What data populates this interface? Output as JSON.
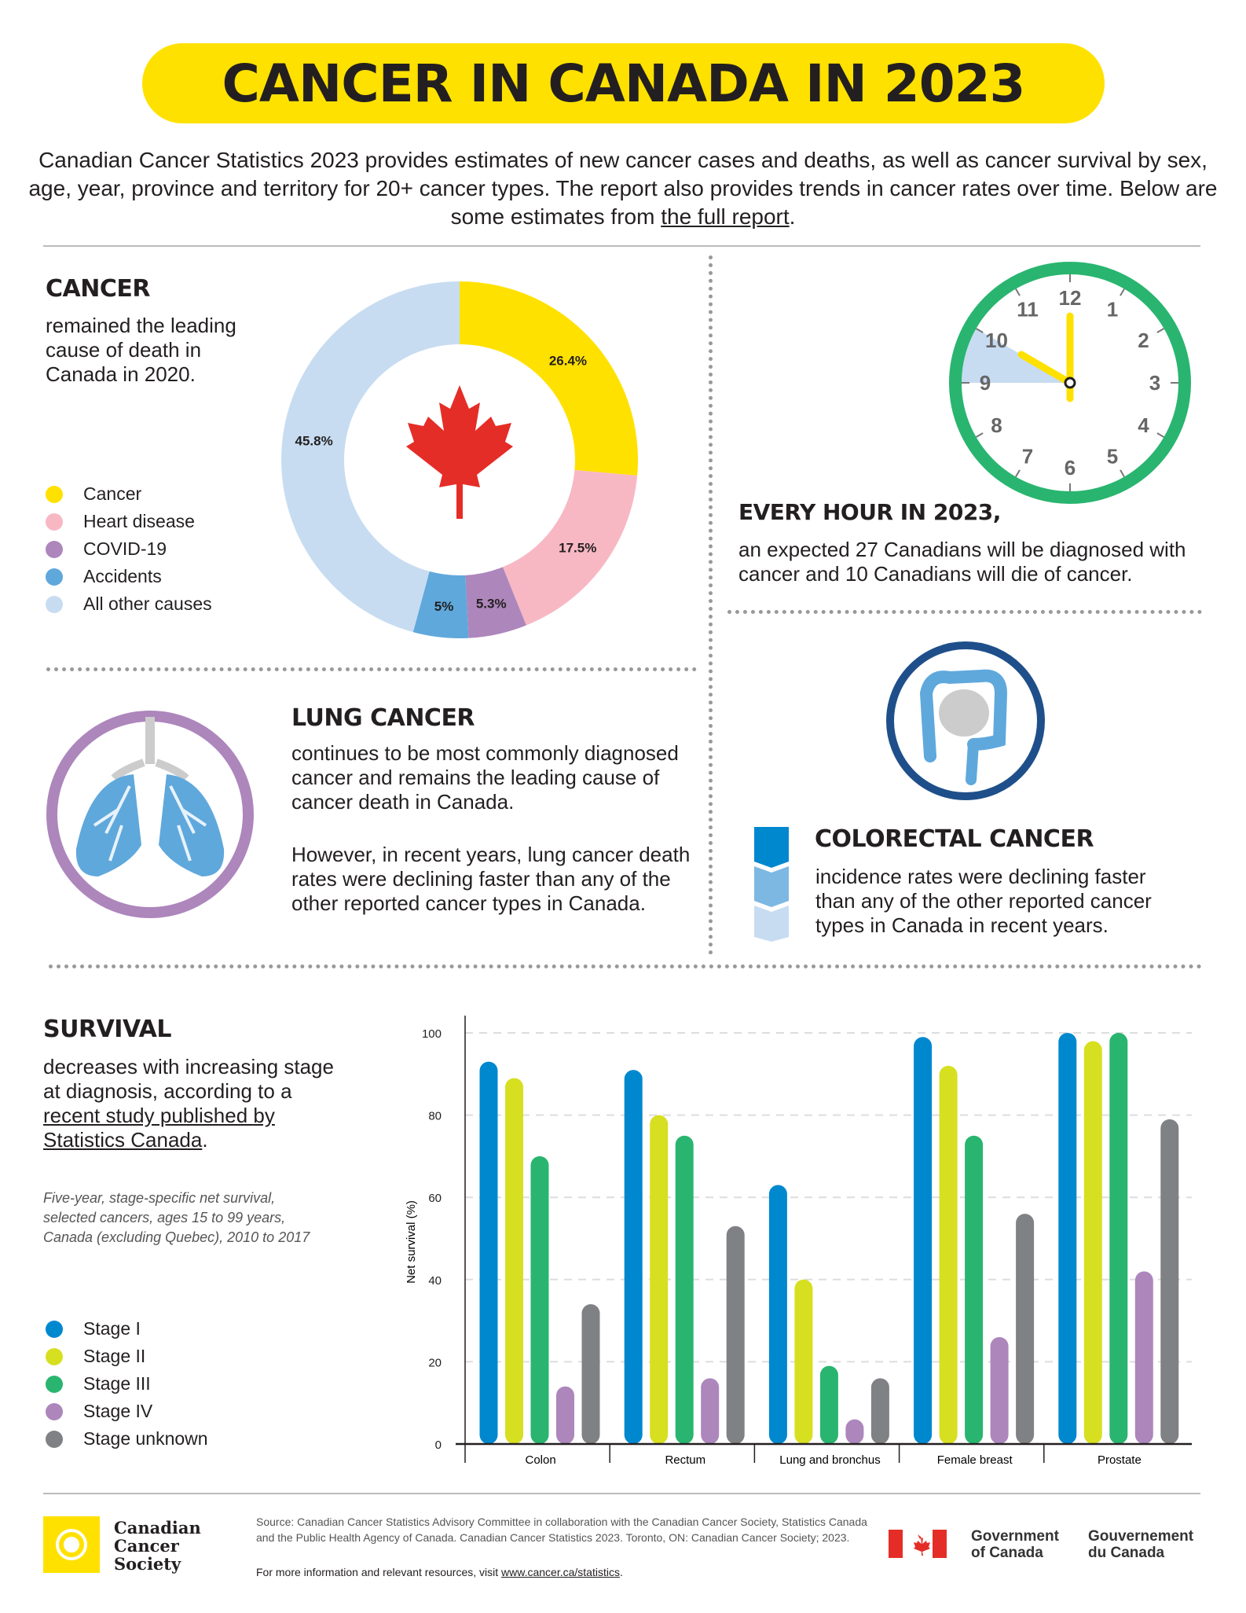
{
  "title": "CANCER IN CANADA IN 2023",
  "intro": {
    "text": "Canadian Cancer Statistics 2023 provides estimates of new cancer cases and deaths, as well as cancer survival by sex, age, year, province and territory for 20+ cancer types. The report also provides trends in cancer rates over time. Below are some estimates from ",
    "link": "the full report",
    "end": "."
  },
  "cancer": {
    "heading": "CANCER",
    "text": "remained the leading cause of death in Canada in 2020.",
    "slices": [
      {
        "label": "Cancer",
        "value": 26.4,
        "display": "26.4%",
        "color": "#ffe100"
      },
      {
        "label": "Heart disease",
        "value": 17.5,
        "display": "17.5%",
        "color": "#f7b8c4"
      },
      {
        "label": "COVID-19",
        "value": 5.3,
        "display": "5.3%",
        "color": "#ad86bc"
      },
      {
        "label": "Accidents",
        "value": 5,
        "display": "5%",
        "color": "#5fa8dc"
      },
      {
        "label": "All other causes",
        "value": 45.8,
        "display": "45.8%",
        "color": "#c7dcf1"
      }
    ]
  },
  "hour": {
    "heading": "EVERY HOUR IN 2023,",
    "text": "an expected 27 Canadians will be diagnosed with cancer and 10 Canadians will die of cancer.",
    "clock_numbers": [
      "12",
      "1",
      "2",
      "3",
      "4",
      "5",
      "6",
      "7",
      "8",
      "9",
      "10",
      "11"
    ]
  },
  "lung": {
    "heading": "LUNG CANCER",
    "p1": "continues to be most commonly diagnosed cancer and remains the leading cause of cancer death in Canada.",
    "p2": "However, in recent years, lung cancer death rates were declining faster than any of the other reported cancer types in Canada."
  },
  "colorectal": {
    "heading": "COLORECTAL CANCER",
    "text": "incidence rates were declining faster than any of the other reported cancer types in Canada in recent years."
  },
  "survival": {
    "heading": "SURVIVAL",
    "text": "decreases with increasing stage at diagnosis, according to a ",
    "link": "recent study published by Statistics Canada",
    "end": ".",
    "note": "Five-year, stage-specific net survival, selected cancers, ages 15 to 99 years, Canada (excluding Quebec), 2010 to 2017"
  },
  "chart_data": {
    "type": "bar",
    "ylabel": "Net survival (%)",
    "ylim": [
      0,
      100
    ],
    "yticks": [
      "0",
      "20",
      "40",
      "60",
      "80",
      "100"
    ],
    "grid": true,
    "categories": [
      "Colon",
      "Rectum",
      "Lung and bronchus",
      "Female breast",
      "Prostate"
    ],
    "series": [
      {
        "name": "Stage I",
        "color": "#0088cf",
        "values": [
          93,
          91,
          63,
          99,
          100
        ]
      },
      {
        "name": "Stage II",
        "color": "#d7df21",
        "values": [
          89,
          80,
          40,
          92,
          98
        ]
      },
      {
        "name": "Stage III",
        "color": "#29b56f",
        "values": [
          70,
          75,
          19,
          75,
          100
        ]
      },
      {
        "name": "Stage IV",
        "color": "#ad86bc",
        "values": [
          14,
          16,
          6,
          26,
          42
        ]
      },
      {
        "name": "Stage unknown",
        "color": "#808184",
        "values": [
          34,
          53,
          16,
          56,
          79
        ]
      }
    ]
  },
  "footer": {
    "ccs": [
      "Canadian",
      "Cancer",
      "Society"
    ],
    "source": "Source: Canadian Cancer Statistics Advisory Committee in collaboration with the Canadian Cancer Society, Statistics Canada and the Public Health Agency of Canada. Canadian Cancer Statistics 2023. Toronto, ON: Canadian Cancer Society; 2023.",
    "more": "For more information and relevant resources, visit ",
    "url": "www.cancer.ca/statistics",
    "url_end": ".",
    "gov_en": "Government of Canada",
    "gov_fr": "Gouvernement du Canada"
  }
}
